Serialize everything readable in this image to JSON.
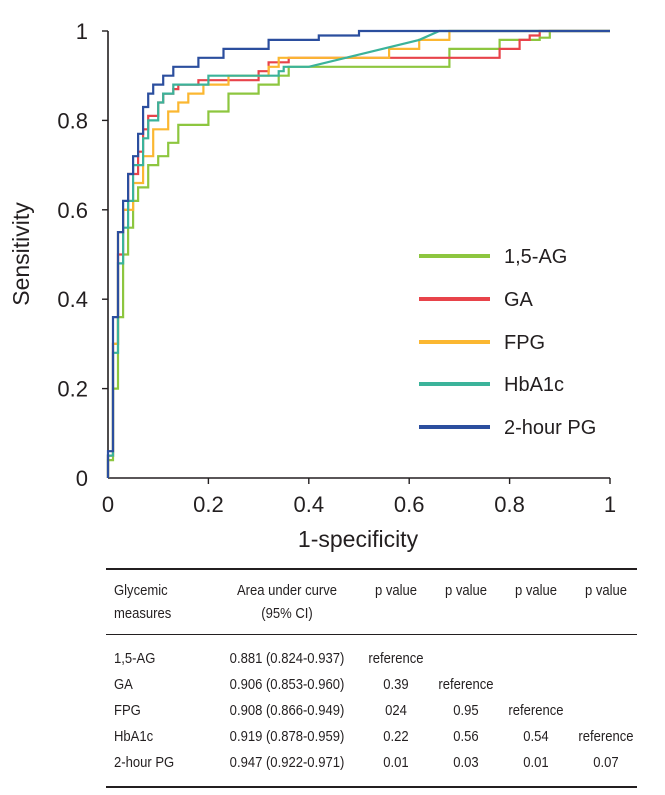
{
  "chart_data": {
    "type": "line",
    "title": "",
    "xlabel": "1-specificity",
    "ylabel": "Sensitivity",
    "xlim": [
      0,
      1
    ],
    "ylim": [
      0,
      1
    ],
    "xticks": [
      0,
      0.2,
      0.4,
      0.6,
      0.8,
      1
    ],
    "yticks": [
      0,
      0.2,
      0.4,
      0.6,
      0.8,
      1
    ],
    "xtick_labels": [
      "0",
      "0.2",
      "0.4",
      "0.6",
      "0.8",
      "1"
    ],
    "ytick_labels": [
      "0",
      "0.2",
      "0.4",
      "0.6",
      "0.8",
      "1"
    ],
    "grid": false,
    "legend_position": "center-right",
    "series": [
      {
        "name": "1,5-AG",
        "color": "#8dc63f",
        "x": [
          0,
          0,
          0.01,
          0.01,
          0.02,
          0.02,
          0.03,
          0.03,
          0.04,
          0.04,
          0.05,
          0.05,
          0.06,
          0.06,
          0.08,
          0.08,
          0.1,
          0.1,
          0.12,
          0.12,
          0.14,
          0.14,
          0.2,
          0.2,
          0.24,
          0.24,
          0.3,
          0.3,
          0.34,
          0.34,
          0.36,
          0.36,
          0.68,
          0.68,
          0.78,
          0.78,
          0.86,
          0.86,
          0.88,
          0.88,
          1
        ],
        "y": [
          0,
          0.04,
          0.04,
          0.2,
          0.2,
          0.36,
          0.36,
          0.5,
          0.5,
          0.56,
          0.56,
          0.62,
          0.62,
          0.65,
          0.65,
          0.7,
          0.7,
          0.72,
          0.72,
          0.75,
          0.75,
          0.79,
          0.79,
          0.82,
          0.82,
          0.86,
          0.86,
          0.88,
          0.88,
          0.9,
          0.9,
          0.92,
          0.92,
          0.96,
          0.96,
          0.98,
          0.98,
          0.985,
          0.985,
          1,
          1
        ]
      },
      {
        "name": "GA",
        "color": "#e8434a",
        "x": [
          0,
          0,
          0.01,
          0.01,
          0.02,
          0.02,
          0.03,
          0.03,
          0.04,
          0.04,
          0.06,
          0.06,
          0.07,
          0.07,
          0.08,
          0.08,
          0.1,
          0.1,
          0.11,
          0.11,
          0.13,
          0.13,
          0.14,
          0.14,
          0.18,
          0.18,
          0.3,
          0.3,
          0.32,
          0.32,
          0.36,
          0.36,
          0.78,
          0.78,
          0.82,
          0.82,
          0.84,
          0.84,
          0.86,
          0.86,
          1
        ],
        "y": [
          0,
          0.05,
          0.05,
          0.3,
          0.3,
          0.5,
          0.5,
          0.6,
          0.6,
          0.68,
          0.68,
          0.73,
          0.73,
          0.78,
          0.78,
          0.81,
          0.81,
          0.84,
          0.84,
          0.86,
          0.86,
          0.87,
          0.87,
          0.88,
          0.88,
          0.89,
          0.89,
          0.91,
          0.91,
          0.93,
          0.93,
          0.94,
          0.94,
          0.96,
          0.96,
          0.98,
          0.98,
          0.99,
          0.99,
          1,
          1
        ]
      },
      {
        "name": "FPG",
        "color": "#fbb731",
        "x": [
          0,
          0,
          0.01,
          0.01,
          0.02,
          0.02,
          0.03,
          0.03,
          0.05,
          0.05,
          0.07,
          0.07,
          0.09,
          0.09,
          0.12,
          0.12,
          0.14,
          0.14,
          0.16,
          0.16,
          0.19,
          0.19,
          0.24,
          0.24,
          0.32,
          0.32,
          0.34,
          0.34,
          0.56,
          0.56,
          0.62,
          0.62,
          0.68,
          0.68,
          0.84,
          0.84,
          1
        ],
        "y": [
          0,
          0.05,
          0.05,
          0.3,
          0.3,
          0.55,
          0.55,
          0.6,
          0.6,
          0.66,
          0.66,
          0.72,
          0.72,
          0.78,
          0.78,
          0.82,
          0.82,
          0.84,
          0.84,
          0.86,
          0.86,
          0.88,
          0.88,
          0.9,
          0.9,
          0.92,
          0.92,
          0.94,
          0.94,
          0.96,
          0.96,
          0.98,
          0.98,
          1,
          1,
          1,
          1
        ]
      },
      {
        "name": "HbA1c",
        "color": "#3bb39a",
        "x": [
          0,
          0,
          0.01,
          0.01,
          0.02,
          0.02,
          0.03,
          0.03,
          0.04,
          0.04,
          0.05,
          0.05,
          0.07,
          0.07,
          0.08,
          0.08,
          0.1,
          0.1,
          0.11,
          0.11,
          0.13,
          0.13,
          0.2,
          0.2,
          0.34,
          0.34,
          0.35,
          0.35,
          0.4,
          0.62,
          0.62,
          0.66,
          0.66,
          1
        ],
        "y": [
          0,
          0.05,
          0.05,
          0.28,
          0.28,
          0.48,
          0.48,
          0.56,
          0.56,
          0.62,
          0.62,
          0.7,
          0.7,
          0.76,
          0.76,
          0.8,
          0.8,
          0.84,
          0.84,
          0.86,
          0.86,
          0.88,
          0.88,
          0.9,
          0.9,
          0.91,
          0.91,
          0.92,
          0.92,
          0.98,
          0.98,
          1,
          1,
          1
        ]
      },
      {
        "name": "2-hour PG",
        "color": "#2b4e9e",
        "x": [
          0,
          0,
          0.01,
          0.01,
          0.02,
          0.02,
          0.03,
          0.03,
          0.04,
          0.04,
          0.05,
          0.05,
          0.06,
          0.06,
          0.07,
          0.07,
          0.08,
          0.08,
          0.09,
          0.09,
          0.11,
          0.11,
          0.13,
          0.13,
          0.18,
          0.18,
          0.23,
          0.23,
          0.32,
          0.32,
          0.42,
          0.42,
          0.5,
          0.5,
          1
        ],
        "y": [
          0,
          0.06,
          0.06,
          0.36,
          0.36,
          0.55,
          0.55,
          0.62,
          0.62,
          0.68,
          0.68,
          0.72,
          0.72,
          0.77,
          0.77,
          0.83,
          0.83,
          0.86,
          0.86,
          0.88,
          0.88,
          0.9,
          0.9,
          0.92,
          0.92,
          0.94,
          0.94,
          0.96,
          0.96,
          0.98,
          0.98,
          0.99,
          0.99,
          1,
          1
        ]
      }
    ]
  },
  "table": {
    "headers": [
      {
        "line1": "Glycemic",
        "line2": "measures"
      },
      {
        "line1": "Area under curve",
        "line2": "(95% CI)"
      },
      {
        "line1": "p value",
        "line2": ""
      },
      {
        "line1": "p value",
        "line2": ""
      },
      {
        "line1": "p value",
        "line2": ""
      },
      {
        "line1": "p value",
        "line2": ""
      }
    ],
    "rows": [
      {
        "measure": "1,5-AG",
        "auc": "0.881 (0.824-0.937)",
        "p1": "reference",
        "p2": "",
        "p3": "",
        "p4": ""
      },
      {
        "measure": "GA",
        "auc": "0.906 (0.853-0.960)",
        "p1": "0.39",
        "p2": "reference",
        "p3": "",
        "p4": ""
      },
      {
        "measure": "FPG",
        "auc": "0.908 (0.866-0.949)",
        "p1": "024",
        "p2": "0.95",
        "p3": "reference",
        "p4": ""
      },
      {
        "measure": "HbA1c",
        "auc": "0.919 (0.878-0.959)",
        "p1": "0.22",
        "p2": "0.56",
        "p3": "0.54",
        "p4": "reference"
      },
      {
        "measure": "2-hour PG",
        "auc": "0.947 (0.922-0.971)",
        "p1": "0.01",
        "p2": "0.03",
        "p3": "0.01",
        "p4": "0.07"
      }
    ]
  }
}
